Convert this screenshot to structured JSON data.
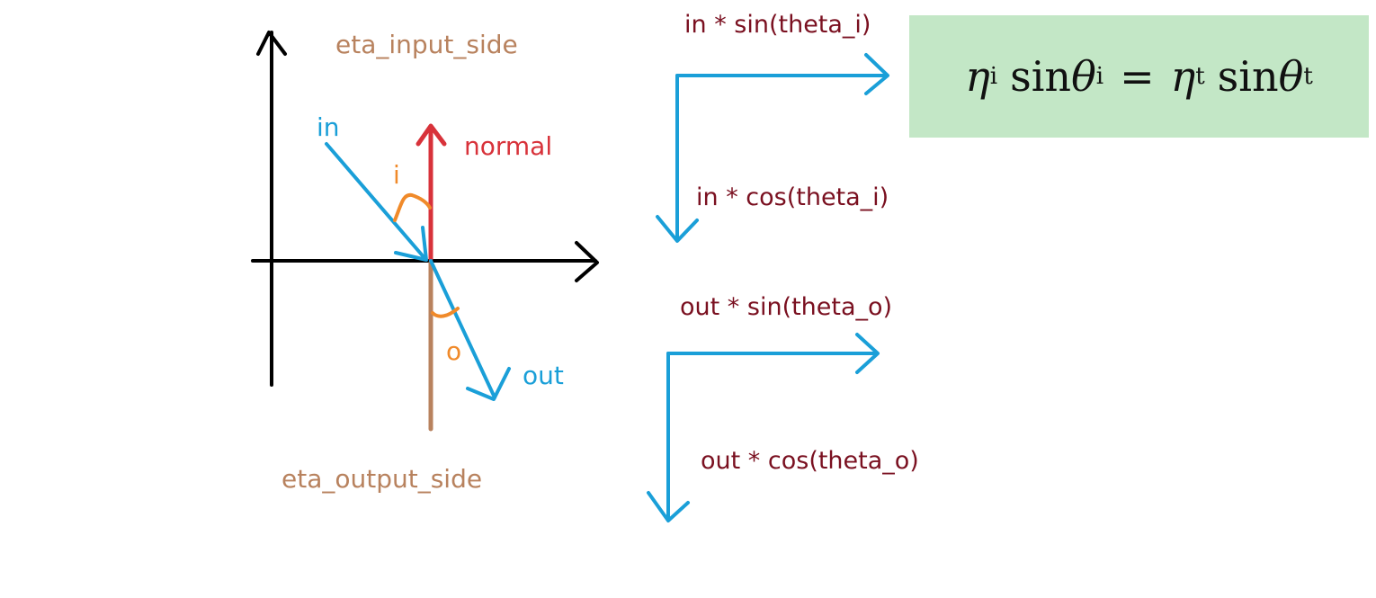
{
  "colors": {
    "axis": "#000000",
    "ray": "#1a9fd8",
    "normal": "#d8323a",
    "output_normal": "#b8825e",
    "angle": "#f08a2a",
    "component_text": "#7a1020",
    "medium_text": "#b8825e",
    "formula_bg": "#c3e7c6"
  },
  "labels": {
    "eta_input": "eta_input_side",
    "eta_output": "eta_output_side",
    "in_ray": "in",
    "out_ray": "out",
    "normal": "normal",
    "angle_i": "i",
    "angle_o": "o"
  },
  "components": {
    "in_sin": "in * sin(theta_i)",
    "in_cos": "in * cos(theta_i)",
    "out_sin": "out * sin(theta_o)",
    "out_cos": "out * cos(theta_o)"
  },
  "formula": {
    "eta": "η",
    "sub_i": "i",
    "sub_t": "t",
    "sin": "sin",
    "theta": "θ",
    "equals": "="
  }
}
